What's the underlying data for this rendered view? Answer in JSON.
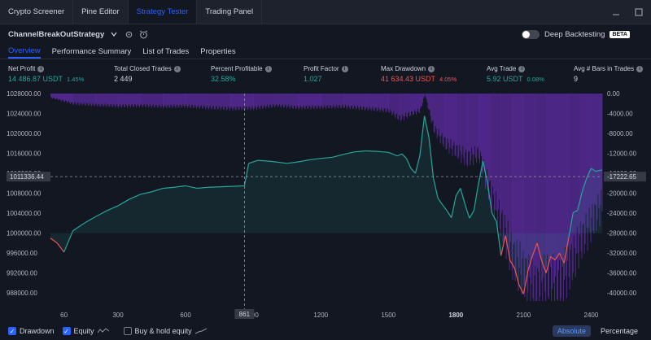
{
  "tabs": [
    "Crypto Screener",
    "Pine Editor",
    "Strategy Tester",
    "Trading Panel"
  ],
  "strategy_name": "ChannelBreakOutStrategy",
  "deep_backtesting": {
    "label": "Deep Backtesting",
    "badge": "BETA"
  },
  "subtabs": [
    "Overview",
    "Performance Summary",
    "List of Trades",
    "Properties"
  ],
  "metrics": [
    {
      "label": "Net Profit",
      "value": "14 486.87 USDT",
      "pct": "1.45%",
      "color": "green"
    },
    {
      "label": "Total Closed Trades",
      "value": "2 449",
      "pct": "",
      "color": "white"
    },
    {
      "label": "Percent Profitable",
      "value": "32.58%",
      "pct": "",
      "color": "green"
    },
    {
      "label": "Profit Factor",
      "value": "1.027",
      "pct": "",
      "color": "green"
    },
    {
      "label": "Max Drawdown",
      "value": "41 634.43 USDT",
      "pct": "4.05%",
      "color": "red"
    },
    {
      "label": "Avg Trade",
      "value": "5.92 USDT",
      "pct": "0.08%",
      "color": "green"
    },
    {
      "label": "Avg # Bars in Trades",
      "value": "9",
      "pct": "",
      "color": "white"
    }
  ],
  "bottom": {
    "drawdown": "Drawdown",
    "equity": "Equity",
    "buyhold": "Buy & hold equity",
    "absolute": "Absolute",
    "percentage": "Percentage"
  },
  "colors": {
    "accent": "#2962ff",
    "equity_line": "#26a69a",
    "equity_below": "#ef5350",
    "drawdown": "#5b2a9c"
  },
  "chart_data": {
    "type": "area",
    "left_axis": {
      "ticks": [
        1028000,
        1024000,
        1020000,
        1016000,
        1012000,
        1008000,
        1004000,
        1000000,
        996000,
        992000,
        988000
      ],
      "tick_labels": [
        "1028000.00",
        "1024000.00",
        "1020000.00",
        "1016000.00",
        "1012000.00",
        "1008000.00",
        "1004000.00",
        "1000000.00",
        "996000.00",
        "992000.00",
        "988000.00"
      ],
      "crosshair_value": "1011336.44",
      "ylim": [
        986400,
        1028000
      ]
    },
    "right_axis": {
      "ticks": [
        0,
        -4000,
        -8000,
        -12000,
        -16000,
        -20000,
        -24000,
        -28000,
        -32000,
        -36000,
        -40000
      ],
      "tick_labels": [
        "0.00",
        "-4000.00",
        "-8000.00",
        "-12000.00",
        "-16000.00",
        "-20000.00",
        "-24000.00",
        "-28000.00",
        "-32000.00",
        "-36000.00",
        "-40000.00"
      ],
      "crosshair_value": "-17222.65",
      "ylim": [
        -41600,
        0
      ]
    },
    "x_axis": {
      "ticks": [
        60,
        300,
        600,
        900,
        1200,
        1500,
        1800,
        2100,
        2400
      ],
      "tick_labels": [
        "60",
        "300",
        "600",
        "900",
        "1200",
        "1500",
        "1800",
        "2100",
        "2400"
      ],
      "bold_tick": "1800",
      "crosshair_value": "861",
      "xlim": [
        0,
        2449
      ]
    },
    "series": [
      {
        "name": "Equity",
        "x": [
          0,
          30,
          60,
          100,
          150,
          200,
          250,
          300,
          350,
          400,
          450,
          500,
          550,
          600,
          650,
          700,
          760,
          820,
          861,
          880,
          920,
          980,
          1050,
          1100,
          1150,
          1200,
          1250,
          1300,
          1350,
          1400,
          1450,
          1500,
          1540,
          1560,
          1580,
          1600,
          1620,
          1640,
          1660,
          1680,
          1700,
          1720,
          1740,
          1760,
          1780,
          1800,
          1820,
          1840,
          1860,
          1880,
          1900,
          1920,
          1940,
          1960,
          1980,
          2000,
          2020,
          2040,
          2060,
          2080,
          2100,
          2120,
          2140,
          2160,
          2180,
          2200,
          2220,
          2240,
          2260,
          2280,
          2300,
          2320,
          2340,
          2360,
          2380,
          2400,
          2420,
          2449
        ],
        "values": [
          999000,
          998000,
          996200,
          1000500,
          1002000,
          1003300,
          1004500,
          1005500,
          1006800,
          1007800,
          1008300,
          1009000,
          1009200,
          1009500,
          1009000,
          1009200,
          1009300,
          1009400,
          1009500,
          1014000,
          1014600,
          1014400,
          1014000,
          1014300,
          1014700,
          1015000,
          1015200,
          1015800,
          1016300,
          1016500,
          1016400,
          1016200,
          1015500,
          1015900,
          1015000,
          1013000,
          1012000,
          1015600,
          1023500,
          1019200,
          1011000,
          1007000,
          1005700,
          1004500,
          1003100,
          1007500,
          1009000,
          1005800,
          1003000,
          1004600,
          1010000,
          1014500,
          1010000,
          1004000,
          1002300,
          995500,
          999500,
          994500,
          993000,
          989600,
          987800,
          992500,
          995500,
          998000,
          994500,
          992000,
          995300,
          994600,
          996000,
          994000,
          999000,
          1004100,
          1004600,
          1008300,
          1011000,
          1013000,
          1012400,
          1012700
        ]
      },
      {
        "name": "Drawdown",
        "x": [
          0,
          100,
          200,
          300,
          400,
          500,
          600,
          700,
          800,
          900,
          1000,
          1100,
          1200,
          1300,
          1400,
          1500,
          1550,
          1600,
          1640,
          1660,
          1700,
          1750,
          1800,
          1850,
          1900,
          1950,
          2000,
          2050,
          2100,
          2150,
          2200,
          2250,
          2300,
          2350,
          2400,
          2449
        ],
        "values": [
          -800,
          -2000,
          -2300,
          -2500,
          -2400,
          -2600,
          -2500,
          -2800,
          -3000,
          -2900,
          -2400,
          -2800,
          -2700,
          -2600,
          -3000,
          -3400,
          -5000,
          -4000,
          -3400,
          0,
          -7000,
          -10000,
          -11500,
          -13000,
          -12000,
          -20000,
          -26000,
          -33000,
          -36000,
          -40000,
          -37000,
          -38500,
          -35000,
          -30000,
          -26000,
          -22000
        ]
      }
    ]
  }
}
